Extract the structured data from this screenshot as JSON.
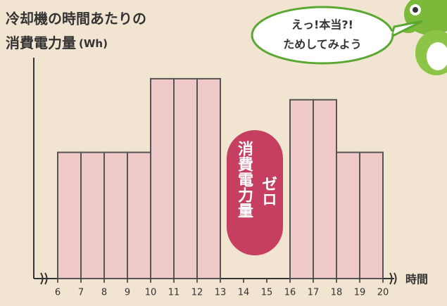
{
  "chart_data": {
    "type": "histogram",
    "title": [
      "冷却機の時間あたりの",
      "消費電力量"
    ],
    "y_unit": "(Wh)",
    "x_label": "時間",
    "bins": [
      6,
      7,
      8,
      9,
      10,
      11,
      12,
      13,
      14,
      15,
      16,
      17,
      18,
      19,
      20
    ],
    "values": [
      60,
      60,
      60,
      60,
      95,
      95,
      95,
      0,
      0,
      0,
      85,
      85,
      60,
      60
    ],
    "color": "#efc8c8",
    "ylim": [
      0,
      105
    ],
    "annotation": {
      "caption": "消費電力量",
      "label": "ゼロ",
      "color": "#c63f60"
    },
    "bubble": [
      "えっ!本当?!",
      "ためしてみよう"
    ]
  }
}
